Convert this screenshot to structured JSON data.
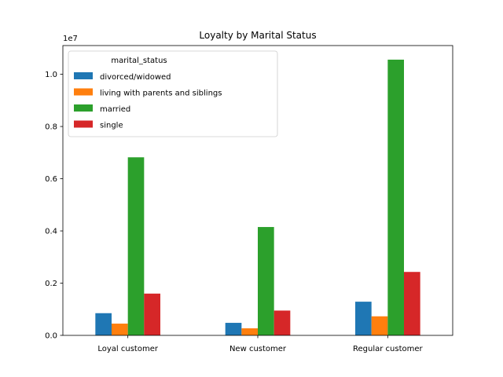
{
  "chart_data": {
    "type": "bar",
    "title": "Loyalty by Marital Status",
    "xlabel": "",
    "ylabel": "",
    "y_offset_label": "1e7",
    "categories": [
      "Loyal customer",
      "New customer",
      "Regular customer"
    ],
    "series": [
      {
        "name": "divorced/widowed",
        "color": "#1f77b4",
        "values": [
          850000,
          480000,
          1290000
        ]
      },
      {
        "name": "living with parents and siblings",
        "color": "#ff7f0e",
        "values": [
          450000,
          270000,
          730000
        ]
      },
      {
        "name": "married",
        "color": "#2ca02c",
        "values": [
          6820000,
          4150000,
          10560000
        ]
      },
      {
        "name": "single",
        "color": "#d62728",
        "values": [
          1600000,
          950000,
          2430000
        ]
      }
    ],
    "ylim": [
      0,
      11100000
    ],
    "yticks": [
      {
        "value": 0,
        "label": "0.0"
      },
      {
        "value": 2000000,
        "label": "0.2"
      },
      {
        "value": 4000000,
        "label": "0.4"
      },
      {
        "value": 6000000,
        "label": "0.6"
      },
      {
        "value": 8000000,
        "label": "0.8"
      },
      {
        "value": 10000000,
        "label": "1.0"
      }
    ],
    "legend": {
      "title": "marital_status",
      "placement": "upper-left"
    },
    "grid": false
  }
}
